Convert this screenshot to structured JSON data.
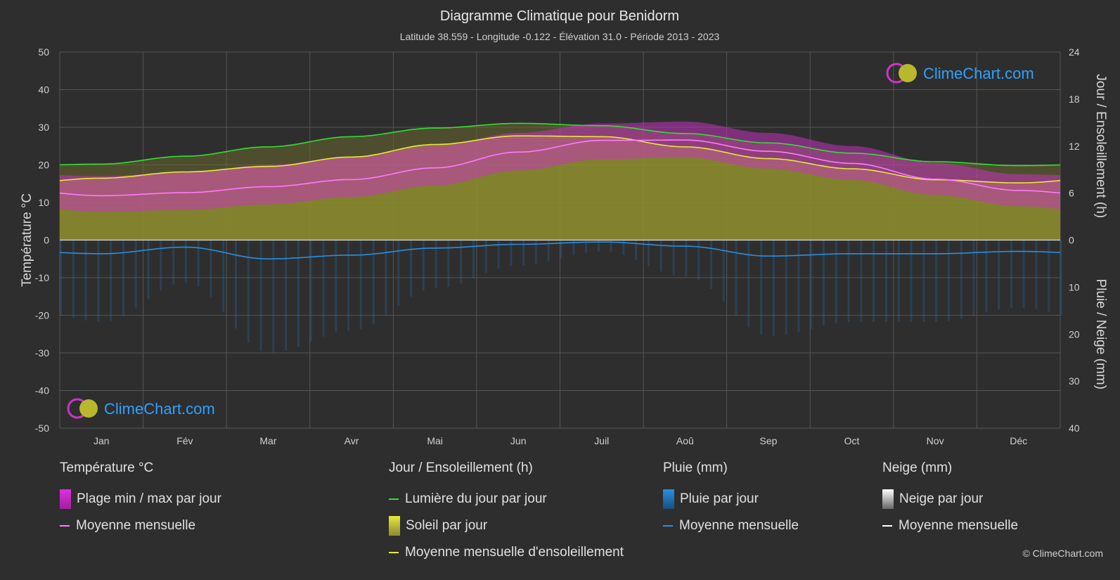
{
  "header": {
    "title": "Diagramme Climatique pour Benidorm",
    "subtitle": "Latitude 38.559 - Longitude -0.122 - Élévation 31.0 - Période 2013 - 2023"
  },
  "brand": {
    "name": "ClimeChart.com",
    "copyright": "© ClimeChart.com"
  },
  "chart_data": {
    "type": "area",
    "categories": [
      "Jan",
      "Fév",
      "Mar",
      "Avr",
      "Mai",
      "Jun",
      "Juil",
      "Aoû",
      "Sep",
      "Oct",
      "Nov",
      "Déc"
    ],
    "left_axis": {
      "label": "Température °C",
      "range": [
        -50,
        50
      ],
      "ticks": [
        "50",
        "40",
        "30",
        "20",
        "10",
        "0",
        "-10",
        "-20",
        "-30",
        "-40",
        "-50"
      ]
    },
    "right_axis_top": {
      "label": "Jour / Ensoleillement (h)",
      "range": [
        0,
        24
      ],
      "ticks": [
        "24",
        "18",
        "12",
        "6",
        "0"
      ]
    },
    "right_axis_bottom": {
      "label": "Pluie / Neige (mm)",
      "range": [
        0,
        40
      ],
      "ticks": [
        "10",
        "20",
        "30",
        "40"
      ]
    },
    "series": [
      {
        "name": "Lumière du jour par jour",
        "unit": "h",
        "color": "#33dd33",
        "values": [
          9.7,
          10.7,
          11.9,
          13.2,
          14.3,
          14.9,
          14.6,
          13.6,
          12.4,
          11.1,
          10.0,
          9.5
        ]
      },
      {
        "name": "Moyenne mensuelle d'ensoleillement",
        "unit": "h",
        "color": "#e8e83a",
        "values": [
          7.9,
          8.7,
          9.4,
          10.6,
          12.2,
          13.3,
          13.2,
          11.9,
          10.4,
          9.1,
          7.7,
          7.3
        ]
      },
      {
        "name": "Température moyenne mensuelle",
        "unit": "°C",
        "color": "#ff7aff",
        "values": [
          11.8,
          12.6,
          14.2,
          16.1,
          19.2,
          23.4,
          26.5,
          26.6,
          23.6,
          20.4,
          16.2,
          13.2
        ]
      },
      {
        "name": "Température max",
        "unit": "°C",
        "color": "#d020d0",
        "values": [
          17.0,
          18.0,
          20.0,
          22.0,
          25.0,
          28.5,
          31.0,
          31.5,
          28.5,
          25.0,
          20.5,
          17.5
        ]
      },
      {
        "name": "Température min",
        "unit": "°C",
        "color": "#d020d0",
        "values": [
          7.5,
          8.0,
          9.5,
          11.5,
          14.5,
          18.5,
          21.5,
          22.0,
          19.0,
          16.0,
          12.0,
          9.0
        ]
      },
      {
        "name": "Pluie moyenne mensuelle",
        "unit": "mm",
        "color": "#2a8fe0",
        "values": [
          2.9,
          1.5,
          4.0,
          3.2,
          1.7,
          0.9,
          0.4,
          1.3,
          3.4,
          2.9,
          2.9,
          2.4
        ]
      }
    ]
  },
  "legend": {
    "groups": [
      {
        "title": "Température °C",
        "items": [
          {
            "label": "Plage min / max par jour",
            "kind": "box",
            "color": "#e030e0"
          },
          {
            "label": "Moyenne mensuelle",
            "kind": "line",
            "color": "#ff7aff"
          }
        ]
      },
      {
        "title": "Jour / Ensoleillement (h)",
        "items": [
          {
            "label": "Lumière du jour par jour",
            "kind": "line",
            "color": "#33dd33"
          },
          {
            "label": "Soleil par jour",
            "kind": "box",
            "color": "#d4d43a"
          },
          {
            "label": "Moyenne mensuelle d'ensoleillement",
            "kind": "line",
            "color": "#e8e83a"
          }
        ]
      },
      {
        "title": "Pluie (mm)",
        "items": [
          {
            "label": "Pluie par jour",
            "kind": "box",
            "color": "#2a8fe0"
          },
          {
            "label": "Moyenne mensuelle",
            "kind": "line",
            "color": "#2a8fe0"
          }
        ]
      },
      {
        "title": "Neige (mm)",
        "items": [
          {
            "label": "Neige par jour",
            "kind": "box",
            "color": "#dddddd"
          },
          {
            "label": "Moyenne mensuelle",
            "kind": "line",
            "color": "#ffffff"
          }
        ]
      }
    ]
  }
}
